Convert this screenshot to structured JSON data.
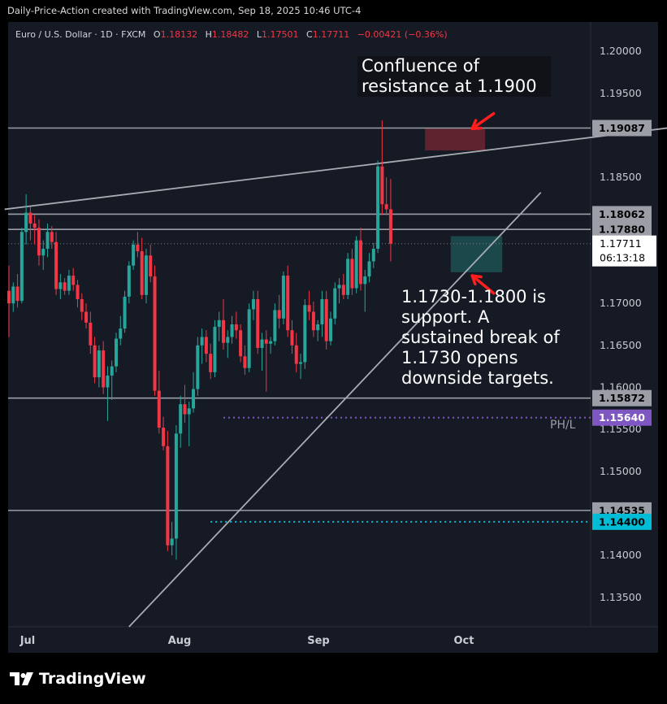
{
  "header": {
    "attribution": "Daily-Price-Action created with TradingView.com, Sep 18, 2025 10:46 UTC-4"
  },
  "legend": {
    "symbol": "Euro / U.S. Dollar · 1D · FXCM",
    "open_label": "O",
    "open": "1.18132",
    "high_label": "H",
    "high": "1.18482",
    "low_label": "L",
    "low": "1.17501",
    "close_label": "C",
    "close": "1.17711",
    "change": "−0.00421 (−0.36%)"
  },
  "annotations": {
    "resistance_note": "Confluence of\nresistance at 1.1900",
    "support_note": "1.1730-1.1800 is\nsupport. A\nsustained break of\n1.1730 opens\ndownside targets."
  },
  "footer": {
    "brand": "TradingView"
  },
  "colors": {
    "background": "#161a25",
    "up": "#26a69a",
    "down": "#f23645",
    "level_line": "#9b9ea6",
    "purple": "#7e57c2",
    "teal": "#00bcd4"
  },
  "chart_data": {
    "type": "candlestick",
    "symbol": "EUR/USD",
    "timeframe": "1D",
    "ylim": [
      1.1315,
      1.2035
    ],
    "yticks": [
      "1.20000",
      "1.19500",
      "1.18500",
      "1.17000",
      "1.16500",
      "1.16000",
      "1.15500",
      "1.15000",
      "1.14000",
      "1.13500"
    ],
    "xticks": [
      "Jul",
      "Aug",
      "Sep",
      "Oct"
    ],
    "price_tags": [
      {
        "value": 1.19087,
        "label": "1.19087",
        "style": "gray"
      },
      {
        "value": 1.18062,
        "label": "1.18062",
        "style": "gray"
      },
      {
        "value": 1.1788,
        "label": "1.17880",
        "style": "gray"
      },
      {
        "value": 1.15872,
        "label": "1.15872",
        "style": "gray"
      },
      {
        "value": 1.1564,
        "label": "1.15640",
        "style": "purple"
      },
      {
        "value": 1.14535,
        "label": "1.14535",
        "style": "gray"
      },
      {
        "value": 1.144,
        "label": "1.14400",
        "style": "teal"
      }
    ],
    "last_price": {
      "value": 1.17711,
      "label": "1.17711",
      "countdown": "06:13:18"
    },
    "prev_high_low_label": "PH/L",
    "horizontal_levels": [
      1.19087,
      1.18062,
      1.1788,
      1.15872,
      1.14535
    ],
    "dotted_levels": [
      {
        "value": 1.1564,
        "from_index": 50,
        "color": "purple"
      },
      {
        "value": 1.144,
        "from_index": 47,
        "color": "teal"
      }
    ],
    "trendlines": [
      {
        "from": [
          -1,
          1.1812
        ],
        "to": [
          154,
          1.1909
        ]
      },
      {
        "from": [
          28,
          1.1315
        ],
        "to": [
          124,
          1.1832
        ]
      }
    ],
    "zones": [
      {
        "from_index": 97,
        "to_index": 111,
        "low": 1.1882,
        "high": 1.1908,
        "color": "red"
      },
      {
        "from_index": 103,
        "to_index": 115,
        "low": 1.1737,
        "high": 1.178,
        "color": "teal"
      }
    ],
    "arrows": [
      {
        "tail_index": 113,
        "tail_value": 1.1926,
        "head_index": 108,
        "head_value": 1.1908
      },
      {
        "tail_index": 113,
        "tail_value": 1.1712,
        "head_index": 108,
        "head_value": 1.1733
      }
    ],
    "candles": [
      [
        1.1715,
        1.1745,
        1.166,
        1.17
      ],
      [
        1.17,
        1.1725,
        1.169,
        1.172
      ],
      [
        1.172,
        1.1735,
        1.1695,
        1.1703
      ],
      [
        1.1703,
        1.179,
        1.17,
        1.1785
      ],
      [
        1.1785,
        1.183,
        1.177,
        1.1808
      ],
      [
        1.1808,
        1.1815,
        1.1775,
        1.1795
      ],
      [
        1.1795,
        1.1805,
        1.177,
        1.179
      ],
      [
        1.179,
        1.18,
        1.1745,
        1.1757
      ],
      [
        1.1757,
        1.1775,
        1.174,
        1.1765
      ],
      [
        1.1765,
        1.1795,
        1.1755,
        1.1785
      ],
      [
        1.1785,
        1.1792,
        1.1765,
        1.1773
      ],
      [
        1.1773,
        1.1785,
        1.171,
        1.1717
      ],
      [
        1.1717,
        1.1735,
        1.1705,
        1.1725
      ],
      [
        1.1725,
        1.173,
        1.171,
        1.1715
      ],
      [
        1.1715,
        1.174,
        1.171,
        1.1733
      ],
      [
        1.1733,
        1.1742,
        1.1715,
        1.1722
      ],
      [
        1.1722,
        1.1728,
        1.1695,
        1.1705
      ],
      [
        1.1705,
        1.1712,
        1.168,
        1.169
      ],
      [
        1.169,
        1.17,
        1.167,
        1.1677
      ],
      [
        1.1677,
        1.169,
        1.164,
        1.165
      ],
      [
        1.165,
        1.166,
        1.1605,
        1.1612
      ],
      [
        1.1612,
        1.165,
        1.16,
        1.1644
      ],
      [
        1.1644,
        1.1655,
        1.1592,
        1.16
      ],
      [
        1.16,
        1.1625,
        1.156,
        1.1614
      ],
      [
        1.1614,
        1.1632,
        1.1585,
        1.1625
      ],
      [
        1.1625,
        1.1665,
        1.1618,
        1.1658
      ],
      [
        1.1658,
        1.1685,
        1.165,
        1.167
      ],
      [
        1.167,
        1.1715,
        1.1665,
        1.1708
      ],
      [
        1.1708,
        1.175,
        1.17,
        1.1745
      ],
      [
        1.1745,
        1.1775,
        1.174,
        1.177
      ],
      [
        1.177,
        1.1785,
        1.1755,
        1.1762
      ],
      [
        1.1762,
        1.1778,
        1.1705,
        1.171
      ],
      [
        1.171,
        1.1765,
        1.17,
        1.1757
      ],
      [
        1.1757,
        1.177,
        1.1725,
        1.1732
      ],
      [
        1.1732,
        1.1745,
        1.159,
        1.1596
      ],
      [
        1.1596,
        1.162,
        1.1545,
        1.1552
      ],
      [
        1.1552,
        1.1565,
        1.1525,
        1.153
      ],
      [
        1.153,
        1.1548,
        1.1405,
        1.1412
      ],
      [
        1.1412,
        1.144,
        1.14,
        1.142
      ],
      [
        1.142,
        1.1555,
        1.1395,
        1.1545
      ],
      [
        1.1545,
        1.159,
        1.1528,
        1.158
      ],
      [
        1.158,
        1.1603,
        1.1558,
        1.1568
      ],
      [
        1.1568,
        1.1583,
        1.153,
        1.1575
      ],
      [
        1.1575,
        1.1618,
        1.157,
        1.1598
      ],
      [
        1.1598,
        1.166,
        1.159,
        1.165
      ],
      [
        1.165,
        1.167,
        1.1628,
        1.166
      ],
      [
        1.166,
        1.1668,
        1.163,
        1.164
      ],
      [
        1.164,
        1.1652,
        1.161,
        1.1618
      ],
      [
        1.1618,
        1.168,
        1.1612,
        1.1672
      ],
      [
        1.1672,
        1.169,
        1.1655,
        1.168
      ],
      [
        1.168,
        1.1705,
        1.1645,
        1.1653
      ],
      [
        1.1653,
        1.1668,
        1.1635,
        1.166
      ],
      [
        1.166,
        1.1685,
        1.1652,
        1.1675
      ],
      [
        1.1675,
        1.169,
        1.1658,
        1.1668
      ],
      [
        1.1668,
        1.1675,
        1.163,
        1.1637
      ],
      [
        1.1637,
        1.165,
        1.1615,
        1.1623
      ],
      [
        1.1623,
        1.17,
        1.1618,
        1.1693
      ],
      [
        1.1693,
        1.1715,
        1.168,
        1.1705
      ],
      [
        1.1705,
        1.1715,
        1.164,
        1.1647
      ],
      [
        1.1647,
        1.1665,
        1.162,
        1.1657
      ],
      [
        1.1657,
        1.1668,
        1.1595,
        1.1652
      ],
      [
        1.1652,
        1.166,
        1.164,
        1.1655
      ],
      [
        1.1655,
        1.17,
        1.165,
        1.1692
      ],
      [
        1.1692,
        1.171,
        1.167,
        1.1682
      ],
      [
        1.1682,
        1.1738,
        1.1675,
        1.1733
      ],
      [
        1.1733,
        1.1745,
        1.166,
        1.1668
      ],
      [
        1.1668,
        1.168,
        1.164,
        1.165
      ],
      [
        1.165,
        1.1665,
        1.1618,
        1.1628
      ],
      [
        1.1628,
        1.164,
        1.161,
        1.163
      ],
      [
        1.163,
        1.1705,
        1.1622,
        1.1698
      ],
      [
        1.1698,
        1.1715,
        1.168,
        1.169
      ],
      [
        1.169,
        1.1702,
        1.166,
        1.1668
      ],
      [
        1.1668,
        1.168,
        1.1655,
        1.1675
      ],
      [
        1.1675,
        1.1715,
        1.166,
        1.1705
      ],
      [
        1.1705,
        1.1715,
        1.1645,
        1.1655
      ],
      [
        1.1655,
        1.169,
        1.165,
        1.1682
      ],
      [
        1.1682,
        1.1725,
        1.1675,
        1.1718
      ],
      [
        1.1718,
        1.173,
        1.17,
        1.1722
      ],
      [
        1.1722,
        1.1735,
        1.1705,
        1.171
      ],
      [
        1.171,
        1.176,
        1.1705,
        1.1753
      ],
      [
        1.1753,
        1.1765,
        1.171,
        1.1718
      ],
      [
        1.1718,
        1.178,
        1.1712,
        1.1775
      ],
      [
        1.1775,
        1.179,
        1.1715,
        1.1723
      ],
      [
        1.1723,
        1.174,
        1.169,
        1.1732
      ],
      [
        1.1732,
        1.176,
        1.1725,
        1.175
      ],
      [
        1.175,
        1.1772,
        1.1742,
        1.1765
      ],
      [
        1.1765,
        1.187,
        1.176,
        1.1863
      ],
      [
        1.1863,
        1.1918,
        1.1805,
        1.1818
      ],
      [
        1.1818,
        1.185,
        1.1805,
        1.1812
      ],
      [
        1.1812,
        1.1848,
        1.175,
        1.1771
      ]
    ]
  }
}
